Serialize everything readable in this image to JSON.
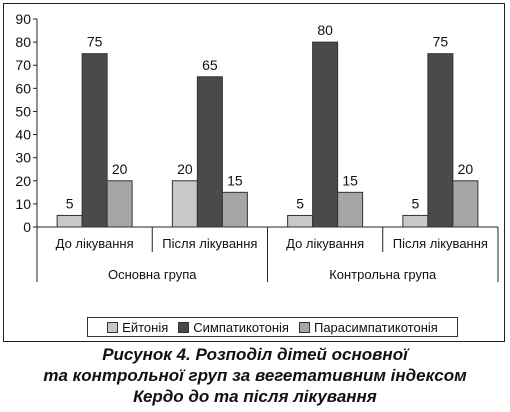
{
  "chart_data": {
    "type": "bar",
    "groups": [
      {
        "label": "Основна група",
        "categories": [
          "До лікування",
          "Після лікування"
        ]
      },
      {
        "label": "Контрольна група",
        "categories": [
          "До лікування",
          "Після лікування"
        ]
      }
    ],
    "categories": [
      "До лікування",
      "Після лікування",
      "До лікування",
      "Після лікування"
    ],
    "series": [
      {
        "name": "Ейтонія",
        "color": "#c8c8c8",
        "values": [
          5,
          20,
          5,
          5
        ]
      },
      {
        "name": "Симпатикотонія",
        "color": "#4a4a4a",
        "values": [
          75,
          65,
          80,
          75
        ]
      },
      {
        "name": "Парасимпатикотонія",
        "color": "#a6a6a6",
        "values": [
          20,
          15,
          15,
          20
        ]
      }
    ],
    "ylim": [
      0,
      90
    ],
    "yticks": [
      0,
      10,
      20,
      30,
      40,
      50,
      60,
      70,
      80,
      90
    ],
    "grid": false,
    "legend_position": "bottom",
    "title": "",
    "xlabel": "",
    "ylabel": ""
  },
  "caption": {
    "line1": "Рисунок 4. Розподіл дітей основної",
    "line2": "та контрольної груп за вегетативним індексом",
    "line3": "Кердо до та після лікування"
  }
}
